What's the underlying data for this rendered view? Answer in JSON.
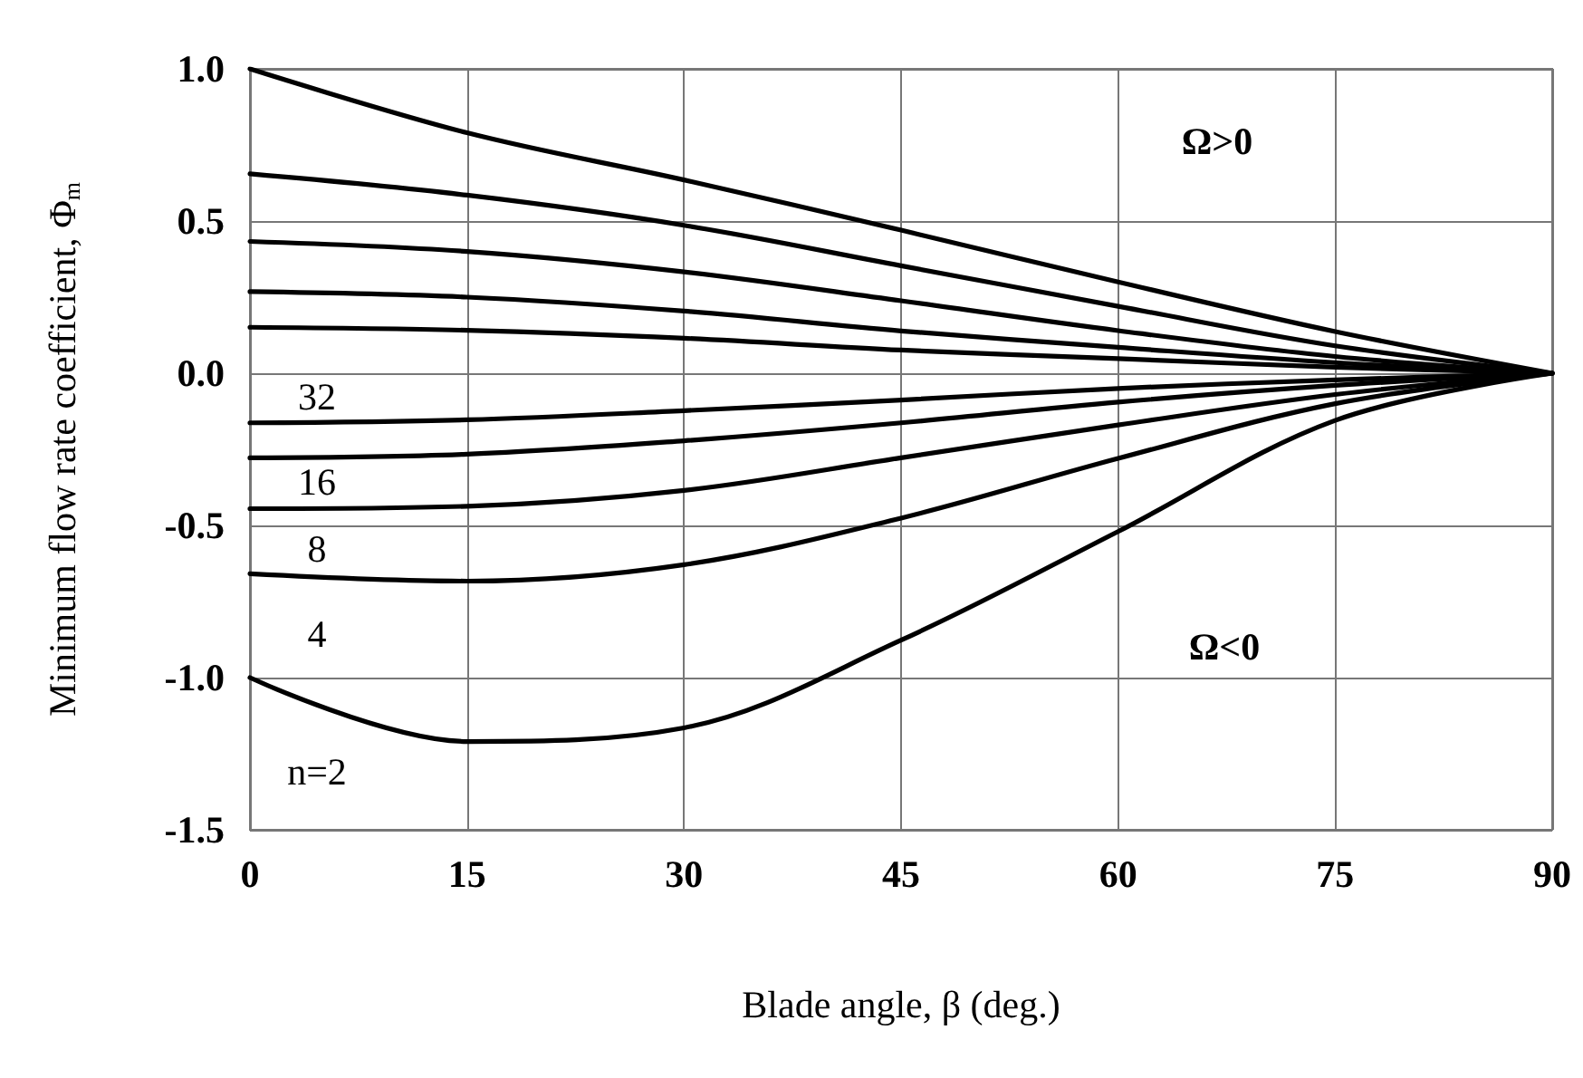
{
  "chart_data": {
    "type": "line",
    "xlabel": "Blade angle, β (deg.)",
    "ylabel": "Minimum flow rate coefficient, Φ$_{m}$",
    "x": [
      0,
      15,
      30,
      45,
      60,
      75,
      90
    ],
    "series": [
      {
        "color": "#000000",
        "values": [
          1.0,
          0.79,
          0.635,
          0.47,
          0.3,
          0.137,
          0
        ]
      },
      {
        "color": "#000000",
        "values": [
          0.655,
          0.585,
          0.486,
          0.353,
          0.22,
          0.09,
          0
        ]
      },
      {
        "color": "#000000",
        "values": [
          0.433,
          0.4,
          0.333,
          0.238,
          0.14,
          0.055,
          0
        ]
      },
      {
        "color": "#000000",
        "values": [
          0.268,
          0.25,
          0.204,
          0.139,
          0.085,
          0.035,
          0
        ]
      },
      {
        "color": "#000000",
        "values": [
          0.151,
          0.141,
          0.115,
          0.076,
          0.048,
          0.02,
          0
        ]
      },
      {
        "color": "#000000",
        "values": [
          -0.163,
          -0.153,
          -0.123,
          -0.088,
          -0.05,
          -0.022,
          0
        ]
      },
      {
        "color": "#000000",
        "values": [
          -0.278,
          -0.266,
          -0.222,
          -0.163,
          -0.095,
          -0.04,
          0
        ]
      },
      {
        "color": "#000000",
        "values": [
          -0.445,
          -0.437,
          -0.385,
          -0.278,
          -0.17,
          -0.07,
          0
        ]
      },
      {
        "color": "#000000",
        "values": [
          -0.659,
          -0.683,
          -0.629,
          -0.476,
          -0.28,
          -0.1,
          0
        ]
      },
      {
        "color": "#000000",
        "values": [
          -1.0,
          -1.21,
          -1.165,
          -0.877,
          -0.52,
          -0.155,
          0
        ]
      }
    ],
    "xlim": [
      0,
      90
    ],
    "xticks": [
      0,
      15,
      30,
      45,
      60,
      75,
      90
    ],
    "ylim": [
      -1.5,
      1.0
    ],
    "yticks": [
      {
        "value": -1.5,
        "label": "-1.5"
      },
      {
        "value": -1.0,
        "label": "-1.0"
      },
      {
        "value": -0.5,
        "label": "-0.5"
      },
      {
        "value": 0,
        "label": "0.0"
      },
      {
        "value": 0.5,
        "label": "0.5"
      },
      {
        "value": 1.0,
        "label": "1.0"
      }
    ],
    "grid": true,
    "marker": "none",
    "line_style": "solid",
    "legend": false,
    "annotations": [
      "32",
      "16",
      "8",
      "4",
      "n=2",
      "Ω>0",
      "Ω<0"
    ]
  }
}
